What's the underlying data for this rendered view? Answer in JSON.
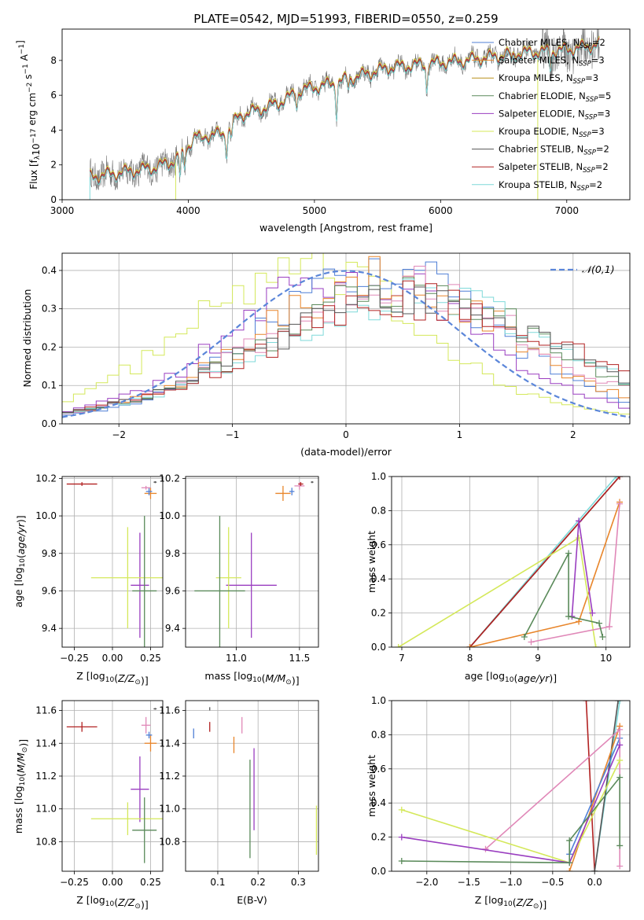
{
  "title": "PLATE=0542, MJD=51993, FIBERID=0550, z=0.259",
  "colors": {
    "ch_miles": "#4f7fd6",
    "sa_miles": "#e8852a",
    "kr_miles": "#b8901c",
    "ch_elodie": "#5a8a5a",
    "sa_elodie": "#9a3ec0",
    "kr_elodie": "#d4e85a",
    "ch_stelib": "#555555",
    "sa_stelib": "#b22222",
    "kr_stelib": "#7ed9d9",
    "pink": "#e088b8",
    "data": "#777777",
    "gauss": "#5b86d9"
  },
  "chart_data": [
    {
      "id": "spectrum",
      "type": "line",
      "xlabel": "wavelength [Angstrom, rest frame]",
      "ylabel": "Flux [f_λ10^-17 erg cm^-2 s^-1 A^-1]",
      "xlim": [
        3000,
        7500
      ],
      "ylim": [
        0,
        9.8
      ],
      "xticks": [
        3000,
        4000,
        5000,
        6000,
        7000
      ],
      "yticks": [
        0,
        2,
        4,
        6,
        8
      ],
      "legend": [
        {
          "label": "Chabrier MILES, N",
          "sub": "SSP",
          "tail": "=2",
          "color": "ch_miles"
        },
        {
          "label": "Salpeter MILES, N",
          "sub": "SSP",
          "tail": "=3",
          "color": "sa_miles"
        },
        {
          "label": "Kroupa MILES, N",
          "sub": "SSP",
          "tail": "=3",
          "color": "kr_miles"
        },
        {
          "label": "Chabrier ELODIE, N",
          "sub": "SSP",
          "tail": "=5",
          "color": "ch_elodie"
        },
        {
          "label": "Salpeter ELODIE, N",
          "sub": "SSP",
          "tail": "=3",
          "color": "sa_elodie"
        },
        {
          "label": "Kroupa ELODIE, N",
          "sub": "SSP",
          "tail": "=3",
          "color": "kr_elodie"
        },
        {
          "label": "Chabrier STELIB, N",
          "sub": "SSP",
          "tail": "=2",
          "color": "ch_stelib"
        },
        {
          "label": "Salpeter STELIB, N",
          "sub": "SSP",
          "tail": "=2",
          "color": "sa_stelib"
        },
        {
          "label": "Kroupa STELIB, N",
          "sub": "SSP",
          "tail": "=2",
          "color": "kr_stelib"
        }
      ],
      "continuum": [
        [
          3220,
          1.3
        ],
        [
          3500,
          1.6
        ],
        [
          3700,
          1.8
        ],
        [
          3850,
          2.1
        ],
        [
          3950,
          2.6
        ],
        [
          4050,
          3.6
        ],
        [
          4300,
          3.8
        ],
        [
          4400,
          4.8
        ],
        [
          4700,
          5.5
        ],
        [
          4900,
          6.3
        ],
        [
          5100,
          6.6
        ],
        [
          5300,
          7.0
        ],
        [
          5600,
          7.6
        ],
        [
          5900,
          7.8
        ],
        [
          6200,
          8.0
        ],
        [
          6600,
          8.4
        ],
        [
          7000,
          8.6
        ],
        [
          7250,
          8.9
        ]
      ],
      "absorptions": [
        [
          3934,
          -1.2
        ],
        [
          3969,
          -1.0
        ],
        [
          4101,
          -0.4
        ],
        [
          4304,
          -1.1
        ],
        [
          4340,
          -0.5
        ],
        [
          4861,
          -0.7
        ],
        [
          5175,
          -1.8
        ],
        [
          5270,
          -0.5
        ],
        [
          5890,
          -1.4
        ],
        [
          6563,
          -0.5
        ],
        [
          6870,
          -0.9
        ]
      ]
    },
    {
      "id": "residuals",
      "type": "step",
      "xlabel": "(data-model)/error",
      "ylabel": "Normed distribution",
      "xlim": [
        -2.5,
        2.5
      ],
      "ylim": [
        0,
        0.445
      ],
      "xticks": [
        -2,
        -1,
        0,
        1,
        2
      ],
      "yticks": [
        0.0,
        0.1,
        0.2,
        0.3,
        0.4
      ],
      "legend": "𝒩(0,1)",
      "gauss": {
        "mu": 0,
        "sigma": 1
      },
      "bins": 50,
      "histograms": [
        {
          "color": "kr_elodie",
          "mu": -0.35,
          "sigma": 1.05
        },
        {
          "color": "sa_elodie",
          "mu": 0.1,
          "sigma": 1.05
        },
        {
          "color": "ch_miles",
          "mu": 0.3,
          "sigma": 1.0
        },
        {
          "color": "sa_miles",
          "mu": 0.35,
          "sigma": 1.1
        },
        {
          "color": "pink",
          "mu": 0.45,
          "sigma": 1.15
        },
        {
          "color": "ch_elodie",
          "mu": 0.5,
          "sigma": 1.2
        },
        {
          "color": "kr_stelib",
          "mu": 0.6,
          "sigma": 1.25
        },
        {
          "color": "sa_stelib",
          "mu": 0.65,
          "sigma": 1.3
        },
        {
          "color": "ch_stelib",
          "mu": 0.55,
          "sigma": 1.25
        }
      ]
    },
    {
      "id": "age_vs_Z",
      "type": "scatter",
      "xlabel": "Z [log10(Z/Z⊙)]",
      "ylabel": "age  [log10(age/yr)]",
      "xlim": [
        -0.33,
        0.33
      ],
      "ylim": [
        9.3,
        10.21
      ],
      "xticks": [
        -0.25,
        0.0,
        0.25
      ],
      "xticklabels": [
        "−0.25",
        "0.00",
        "0.25"
      ],
      "yticks": [
        9.4,
        9.6,
        9.8,
        10.0,
        10.2
      ],
      "points": [
        {
          "x": -0.2,
          "y": 10.17,
          "xerr": 0.1,
          "yerr": 0.01,
          "color": "sa_stelib"
        },
        {
          "x": 0.25,
          "y": 10.12,
          "xerr": 0.04,
          "yerr": 0.03,
          "color": "sa_miles"
        },
        {
          "x": 0.24,
          "y": 10.13,
          "xerr": 0.02,
          "yerr": 0.02,
          "color": "ch_miles"
        },
        {
          "x": 0.22,
          "y": 10.15,
          "xerr": 0.03,
          "yerr": 0.01,
          "color": "pink"
        },
        {
          "x": 0.28,
          "y": 10.18,
          "xerr": 0.01,
          "yerr": 0.005,
          "color": "ch_stelib"
        },
        {
          "x": 0.18,
          "y": 9.63,
          "xerr": 0.06,
          "yerr": 0.28,
          "color": "sa_elodie"
        },
        {
          "x": 0.1,
          "y": 9.67,
          "xerr": 0.24,
          "yerr": 0.27,
          "color": "kr_elodie"
        },
        {
          "x": 0.21,
          "y": 9.6,
          "xerr": 0.08,
          "yerr": 0.4,
          "color": "ch_elodie"
        }
      ]
    },
    {
      "id": "age_vs_mass",
      "type": "scatter",
      "xlabel": "mass [log10(M/M⊙)]",
      "ylabel": "",
      "xlim": [
        10.6,
        11.65
      ],
      "ylim": [
        9.3,
        10.21
      ],
      "xticks": [
        11.0,
        11.5
      ],
      "xticklabels": [
        "11.0",
        "11.5"
      ],
      "yticks": [
        9.4,
        9.6,
        9.8,
        10.0,
        10.2
      ],
      "points": [
        {
          "x": 11.37,
          "y": 10.12,
          "xerr": 0.06,
          "yerr": 0.04,
          "color": "sa_miles"
        },
        {
          "x": 11.44,
          "y": 10.13,
          "xerr": 0.02,
          "yerr": 0.02,
          "color": "ch_miles"
        },
        {
          "x": 11.5,
          "y": 10.16,
          "xerr": 0.04,
          "yerr": 0.02,
          "color": "pink"
        },
        {
          "x": 11.51,
          "y": 10.17,
          "xerr": 0.02,
          "yerr": 0.01,
          "color": "sa_stelib"
        },
        {
          "x": 11.6,
          "y": 10.18,
          "xerr": 0.01,
          "yerr": 0.005,
          "color": "ch_stelib"
        },
        {
          "x": 11.12,
          "y": 9.63,
          "xerr": 0.2,
          "yerr": 0.28,
          "color": "sa_elodie"
        },
        {
          "x": 10.94,
          "y": 9.67,
          "xerr": 0.1,
          "yerr": 0.27,
          "color": "kr_elodie"
        },
        {
          "x": 10.87,
          "y": 9.6,
          "xerr": 0.2,
          "yerr": 0.4,
          "color": "ch_elodie"
        }
      ]
    },
    {
      "id": "mw_vs_age",
      "type": "line",
      "xlabel": "age  [log10(age/yr)]",
      "ylabel": "mass weight",
      "xlim": [
        6.85,
        10.35
      ],
      "ylim": [
        0,
        1
      ],
      "xticks": [
        7,
        8,
        9,
        10
      ],
      "yticks": [
        0.0,
        0.2,
        0.4,
        0.6,
        0.8,
        1.0
      ],
      "series": [
        {
          "color": "kr_stelib",
          "pts": [
            [
              8.0,
              0.0
            ],
            [
              10.15,
              1.0
            ]
          ]
        },
        {
          "color": "ch_stelib",
          "pts": [
            [
              8.0,
              0.0
            ],
            [
              10.2,
              1.0
            ]
          ]
        },
        {
          "color": "sa_stelib",
          "pts": [
            [
              8.0,
              0.0
            ],
            [
              10.2,
              1.0
            ]
          ]
        },
        {
          "color": "sa_miles",
          "pts": [
            [
              8.0,
              0.0
            ],
            [
              9.6,
              0.15
            ],
            [
              10.2,
              0.85
            ]
          ]
        },
        {
          "color": "kr_elodie",
          "pts": [
            [
              6.95,
              0.0
            ],
            [
              9.6,
              0.64
            ],
            [
              9.85,
              0.0
            ]
          ]
        },
        {
          "color": "pink",
          "pts": [
            [
              8.9,
              0.03
            ],
            [
              10.05,
              0.12
            ],
            [
              10.2,
              0.84
            ]
          ]
        },
        {
          "color": "sa_elodie",
          "pts": [
            [
              9.5,
              0.18
            ],
            [
              9.6,
              0.74
            ],
            [
              9.8,
              0.2
            ]
          ]
        },
        {
          "color": "ch_elodie",
          "pts": [
            [
              8.8,
              0.06
            ],
            [
              9.45,
              0.55
            ],
            [
              9.45,
              0.18
            ],
            [
              9.9,
              0.14
            ],
            [
              9.95,
              0.06
            ]
          ]
        }
      ]
    },
    {
      "id": "mass_vs_Z",
      "type": "scatter",
      "xlabel": "Z [log10(Z/Z⊙)]",
      "ylabel": "mass [log10(M/M⊙)]",
      "xlim": [
        -0.33,
        0.33
      ],
      "ylim": [
        10.62,
        11.66
      ],
      "xticks": [
        -0.25,
        0.0,
        0.25
      ],
      "xticklabels": [
        "−0.25",
        "0.00",
        "0.25"
      ],
      "yticks": [
        10.8,
        11.0,
        11.2,
        11.4,
        11.6
      ],
      "points": [
        {
          "x": -0.2,
          "y": 11.5,
          "xerr": 0.1,
          "yerr": 0.03,
          "color": "sa_stelib"
        },
        {
          "x": 0.25,
          "y": 11.4,
          "xerr": 0.04,
          "yerr": 0.05,
          "color": "sa_miles"
        },
        {
          "x": 0.24,
          "y": 11.45,
          "xerr": 0.02,
          "yerr": 0.02,
          "color": "ch_miles"
        },
        {
          "x": 0.22,
          "y": 11.51,
          "xerr": 0.03,
          "yerr": 0.05,
          "color": "pink"
        },
        {
          "x": 0.28,
          "y": 11.61,
          "xerr": 0.01,
          "yerr": 0.005,
          "color": "ch_stelib"
        },
        {
          "x": 0.18,
          "y": 11.12,
          "xerr": 0.06,
          "yerr": 0.2,
          "color": "sa_elodie"
        },
        {
          "x": 0.1,
          "y": 10.94,
          "xerr": 0.24,
          "yerr": 0.1,
          "color": "kr_elodie"
        },
        {
          "x": 0.21,
          "y": 10.87,
          "xerr": 0.08,
          "yerr": 0.2,
          "color": "ch_elodie"
        }
      ]
    },
    {
      "id": "mass_vs_ebv",
      "type": "scatter",
      "xlabel": "E(B-V)",
      "ylabel": "",
      "xlim": [
        0.02,
        0.35
      ],
      "ylim": [
        10.62,
        11.66
      ],
      "xticks": [
        0.1,
        0.2,
        0.3
      ],
      "xticklabels": [
        "0.1",
        "0.2",
        "0.3"
      ],
      "yticks": [
        10.8,
        11.0,
        11.2,
        11.4,
        11.6
      ],
      "points": [
        {
          "x": 0.04,
          "y": 11.46,
          "xerr": 0,
          "yerr": 0.03,
          "color": "ch_miles"
        },
        {
          "x": 0.08,
          "y": 11.5,
          "xerr": 0,
          "yerr": 0.03,
          "color": "sa_stelib"
        },
        {
          "x": 0.08,
          "y": 11.61,
          "xerr": 0,
          "yerr": 0.01,
          "color": "ch_stelib"
        },
        {
          "x": 0.14,
          "y": 11.39,
          "xerr": 0,
          "yerr": 0.05,
          "color": "sa_miles"
        },
        {
          "x": 0.16,
          "y": 11.51,
          "xerr": 0,
          "yerr": 0.05,
          "color": "pink"
        },
        {
          "x": 0.18,
          "y": 11.0,
          "xerr": 0,
          "yerr": 0.3,
          "color": "ch_elodie"
        },
        {
          "x": 0.19,
          "y": 11.12,
          "xerr": 0,
          "yerr": 0.25,
          "color": "sa_elodie"
        },
        {
          "x": 0.345,
          "y": 10.87,
          "xerr": 0,
          "yerr": 0.15,
          "color": "kr_elodie"
        }
      ]
    },
    {
      "id": "mw_vs_Z",
      "type": "line",
      "xlabel": "Z [log10(Z/Z⊙)]",
      "ylabel": "mass weight",
      "xlim": [
        -2.42,
        0.42
      ],
      "ylim": [
        0,
        1
      ],
      "xticks": [
        -2.0,
        -1.5,
        -1.0,
        -0.5,
        0.0
      ],
      "xticklabels": [
        "−2.0",
        "−1.5",
        "−1.0",
        "−0.5",
        "0.0"
      ],
      "yticks": [
        0.0,
        0.2,
        0.4,
        0.6,
        0.8,
        1.0
      ],
      "series": [
        {
          "color": "sa_stelib",
          "pts": [
            [
              -0.1,
              1.0
            ],
            [
              0.0,
              0.0
            ]
          ]
        },
        {
          "color": "kr_stelib",
          "pts": [
            [
              0.0,
              0.0
            ],
            [
              0.3,
              1.0
            ]
          ]
        },
        {
          "color": "ch_stelib",
          "pts": [
            [
              0.0,
              0.0
            ],
            [
              0.28,
              1.0
            ]
          ]
        },
        {
          "color": "sa_miles",
          "pts": [
            [
              -0.3,
              0.0
            ],
            [
              0.3,
              0.85
            ]
          ]
        },
        {
          "color": "ch_miles",
          "pts": [
            [
              -0.3,
              0.1
            ],
            [
              0.3,
              0.78
            ]
          ]
        },
        {
          "color": "pink",
          "pts": [
            [
              -1.3,
              0.13
            ],
            [
              0.3,
              0.83
            ],
            [
              0.3,
              0.03
            ]
          ]
        },
        {
          "color": "kr_elodie",
          "pts": [
            [
              -2.3,
              0.36
            ],
            [
              -0.3,
              0.05
            ],
            [
              0.3,
              0.65
            ]
          ]
        },
        {
          "color": "sa_elodie",
          "pts": [
            [
              -2.3,
              0.2
            ],
            [
              -0.3,
              0.05
            ],
            [
              0.3,
              0.74
            ]
          ]
        },
        {
          "color": "ch_elodie",
          "pts": [
            [
              -2.3,
              0.06
            ],
            [
              -0.3,
              0.05
            ],
            [
              -0.3,
              0.18
            ],
            [
              0.3,
              0.55
            ],
            [
              0.3,
              0.15
            ]
          ]
        }
      ]
    }
  ]
}
